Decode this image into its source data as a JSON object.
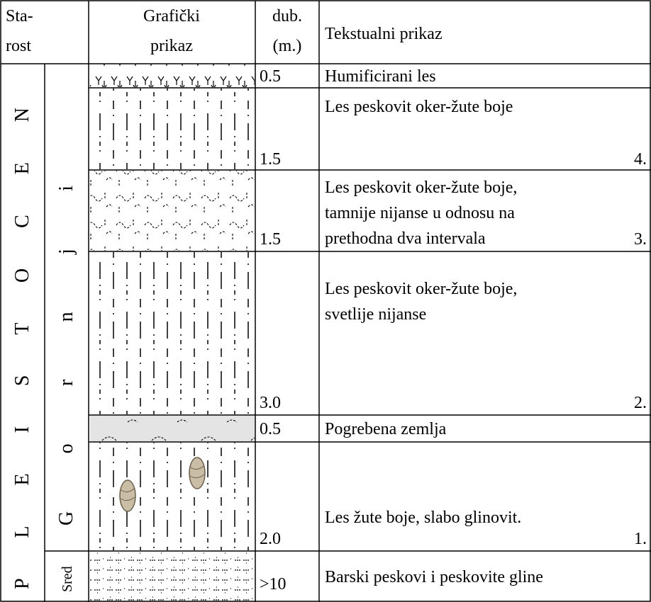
{
  "header": {
    "age": [
      "Sta-",
      "rost"
    ],
    "graphic": [
      "Grafički",
      "prikaz"
    ],
    "depth": [
      "dub.",
      "(m.)"
    ],
    "description": "Tekstualni prikaz"
  },
  "age": {
    "epoch": "PLEISTOCEN",
    "upper": "Gornji",
    "middle": "Sred"
  },
  "layers": [
    {
      "depth": "0.5",
      "description": [
        "Humificirani les"
      ]
    },
    {
      "depth": "1.5",
      "description": [
        "Les peskovit oker-žute boje"
      ],
      "number": "4."
    },
    {
      "depth": "1.5",
      "description": [
        "Les peskovit oker-žute boje,",
        "tamnije nijanse u odnosu na",
        "prethodna dva intervala"
      ],
      "number": "3."
    },
    {
      "depth": "3.0",
      "description": [
        "Les peskovit oker-žute boje,",
        "svetlije nijanse"
      ],
      "number": "2."
    },
    {
      "depth": "0.5",
      "description": [
        "Pogrebena zemlja"
      ]
    },
    {
      "depth": "2.0",
      "description": [
        "Les žute boje, slabo glinovit."
      ],
      "number": "1."
    },
    {
      "depth": ">10",
      "description": [
        "Barski peskovi i peskovite gline"
      ]
    }
  ]
}
